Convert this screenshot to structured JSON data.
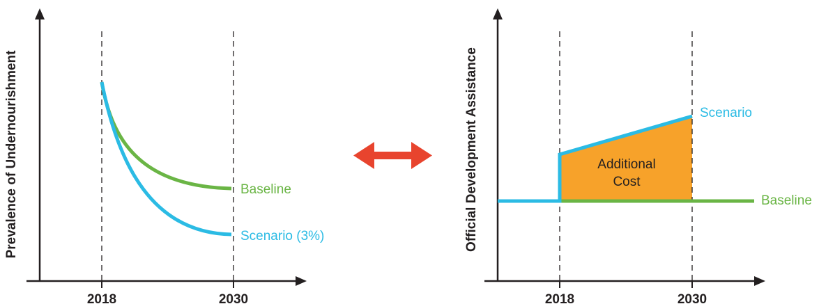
{
  "colors": {
    "axis": "#231f20",
    "baseline": "#6ab545",
    "scenario": "#2bbbe4",
    "cost_fill": "#f7a22a",
    "arrow": "#e8442e"
  },
  "left_panel": {
    "y_axis_title": "Prevalence of Undernourishment",
    "x_ticks": [
      "2018",
      "2030"
    ],
    "baseline_label": "Baseline",
    "scenario_label": "Scenario (3%)"
  },
  "right_panel": {
    "y_axis_title": "Official Development Assistance",
    "x_ticks": [
      "2018",
      "2030"
    ],
    "baseline_label": "Baseline",
    "scenario_label": "Scenario",
    "area_label_line1": "Additional",
    "area_label_line2": "Cost"
  },
  "connector": {
    "icon": "double-headed-arrow-icon"
  }
}
